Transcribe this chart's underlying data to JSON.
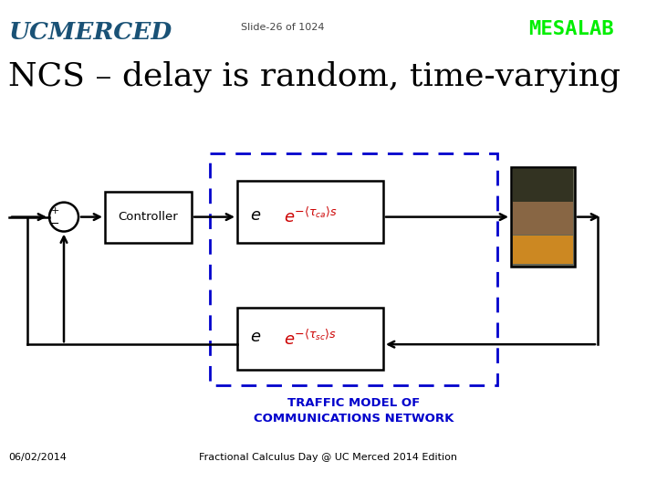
{
  "title_main": "NCS – delay is random, time-varying",
  "slide_number": "Slide-26 of 1024",
  "mesa_lab": "MESALAB",
  "ucmerced": "UCMERCED",
  "date": "06/02/2014",
  "footer": "Fractional Calculus Day @ UC Merced 2014 Edition",
  "traffic_label_line1": "TRAFFIC MODEL OF",
  "traffic_label_line2": "COMMUNICATIONS NETWORK",
  "controller_label": "Controller",
  "bg_color": "#ffffff",
  "ucmerced_color": "#1a5276",
  "mesalab_color": "#00ee00",
  "title_color": "#000000",
  "slide_num_color": "#444444",
  "footer_color": "#000000",
  "date_color": "#000000",
  "block_edge_color": "#000000",
  "dashed_box_color": "#0000cc",
  "arrow_color": "#000000",
  "traffic_label_color": "#0000cc",
  "tau_color": "#cc0000",
  "controller_text_color": "#000000"
}
